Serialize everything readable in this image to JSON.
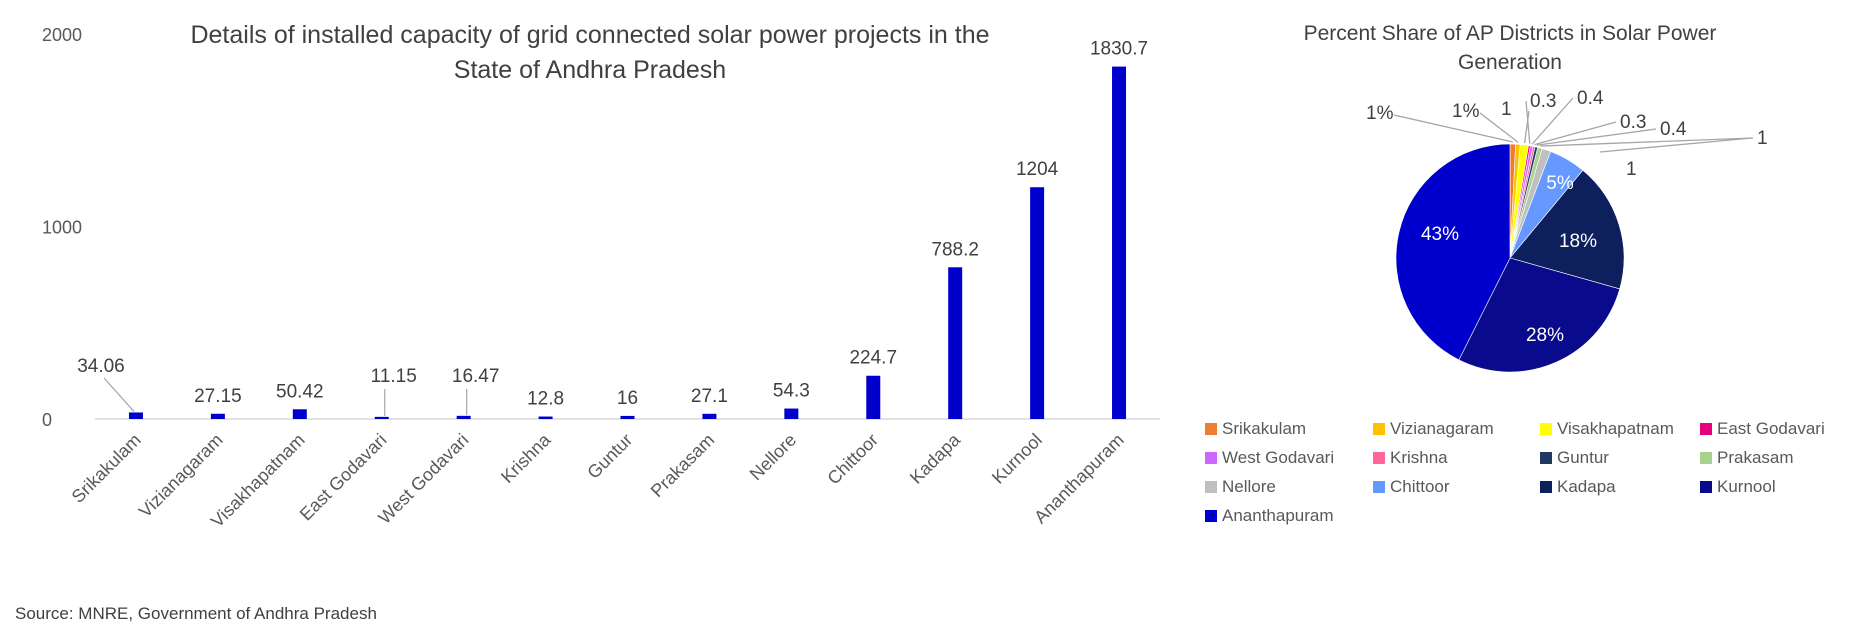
{
  "source_note": "Source: MNRE, Government of Andhra Pradesh",
  "chart_data": [
    {
      "type": "bar",
      "title": "Details of installed capacity of grid connected solar power projects in the State of Andhra Pradesh",
      "title_lines": [
        "Details of installed capacity of grid connected solar power projects in the",
        "State of Andhra Pradesh"
      ],
      "categories": [
        "Srikakulam",
        "Vizianagaram",
        "Visakhapatnam",
        "East Godavari",
        "West Godavari",
        "Krishna",
        "Guntur",
        "Prakasam",
        "Nellore",
        "Chittoor",
        "Kadapa",
        "Kurnool",
        "Ananthapuram"
      ],
      "values": [
        34.06,
        27.15,
        50.42,
        11.15,
        16.47,
        12.8,
        16,
        27.1,
        54.3,
        224.7,
        788.2,
        1204,
        1830.7
      ],
      "labels": [
        "34.06",
        "27.15",
        "50.42",
        "11.15",
        "16.47",
        "12.8",
        "16",
        "27.1",
        "54.3",
        "224.7",
        "788.2",
        "1204",
        "1830.7"
      ],
      "yticks": [
        0,
        1000,
        2000
      ],
      "ylim": [
        0,
        2000
      ],
      "bar_color": "#0000CC",
      "xlabel": "",
      "ylabel": ""
    },
    {
      "type": "pie",
      "title": "Percent Share of AP Districts in Solar Power Generation",
      "title_lines": [
        "Percent Share of AP Districts in Solar Power",
        "Generation"
      ],
      "categories": [
        "Srikakulam",
        "Vizianagaram",
        "Visakhapatnam",
        "East Godavari",
        "West Godavari",
        "Krishna",
        "Guntur",
        "Prakasam",
        "Nellore",
        "Chittoor",
        "Kadapa",
        "Kurnool",
        "Ananthapuram"
      ],
      "values": [
        34.06,
        27.15,
        50.42,
        11.15,
        16.47,
        12.8,
        16,
        27.1,
        54.3,
        224.7,
        788.2,
        1204,
        1830.7
      ],
      "slice_labels": [
        "1%",
        "1%",
        "1",
        "0.3",
        "0.4",
        "0.3",
        "0.4",
        "1",
        "1",
        "5%",
        "18%",
        "28%",
        "43%"
      ],
      "colors": [
        "#ED7D31",
        "#FFC000",
        "#FFFF00",
        "#E6007E",
        "#CC66FF",
        "#FF6699",
        "#1F3864",
        "#A9D18E",
        "#BFBFBF",
        "#6699FF",
        "#0D1F5C",
        "#0A0A8C",
        "#0000CC"
      ],
      "legend_position": "bottom"
    }
  ]
}
